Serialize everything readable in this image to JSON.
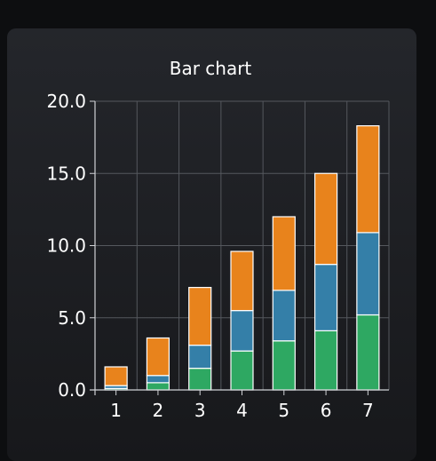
{
  "chart_data": {
    "type": "bar",
    "stacked": true,
    "title": "Bar chart",
    "xlabel": "",
    "ylabel": "",
    "categories": [
      "1",
      "2",
      "3",
      "4",
      "5",
      "6",
      "7"
    ],
    "ylim": [
      0,
      20
    ],
    "yticks": [
      "0.0",
      "5.0",
      "10.0",
      "15.0",
      "20.0"
    ],
    "grid": true,
    "series": [
      {
        "name": "green",
        "color": "#2ea862",
        "values": [
          0.1,
          0.5,
          1.5,
          2.7,
          3.4,
          4.1,
          5.2
        ]
      },
      {
        "name": "blue",
        "color": "#347fa8",
        "values": [
          0.2,
          0.5,
          1.6,
          2.8,
          3.5,
          4.6,
          5.7
        ]
      },
      {
        "name": "orange",
        "color": "#e8831c",
        "values": [
          1.3,
          2.6,
          4.0,
          4.1,
          5.1,
          6.3,
          7.4
        ]
      }
    ]
  }
}
